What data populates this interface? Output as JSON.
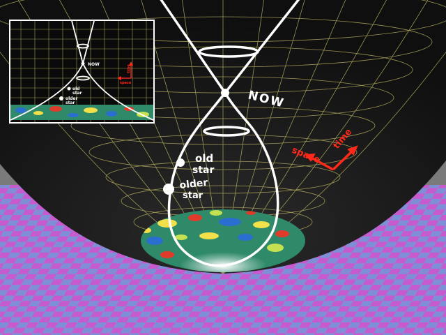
{
  "labels": {
    "now": "NOW",
    "old_star_line1": "old",
    "old_star_line2": "star",
    "older_star_line1": "older",
    "older_star_line2": "star",
    "space": "space",
    "time": "time"
  },
  "inset": {
    "now": "NOW",
    "old_star_line1": "old",
    "old_star_line2": "star",
    "older_star_line1": "older",
    "older_star_line2": "star",
    "space": "space",
    "time": "time"
  },
  "colors": {
    "bowl": "#1b1b1b",
    "grid": "#c9c16a",
    "cone": "#ffffff",
    "axes": "#ff2a1a",
    "floor_a": "#c85ad0",
    "floor_b": "#7f8fd6",
    "background": "#7d7d7d"
  }
}
